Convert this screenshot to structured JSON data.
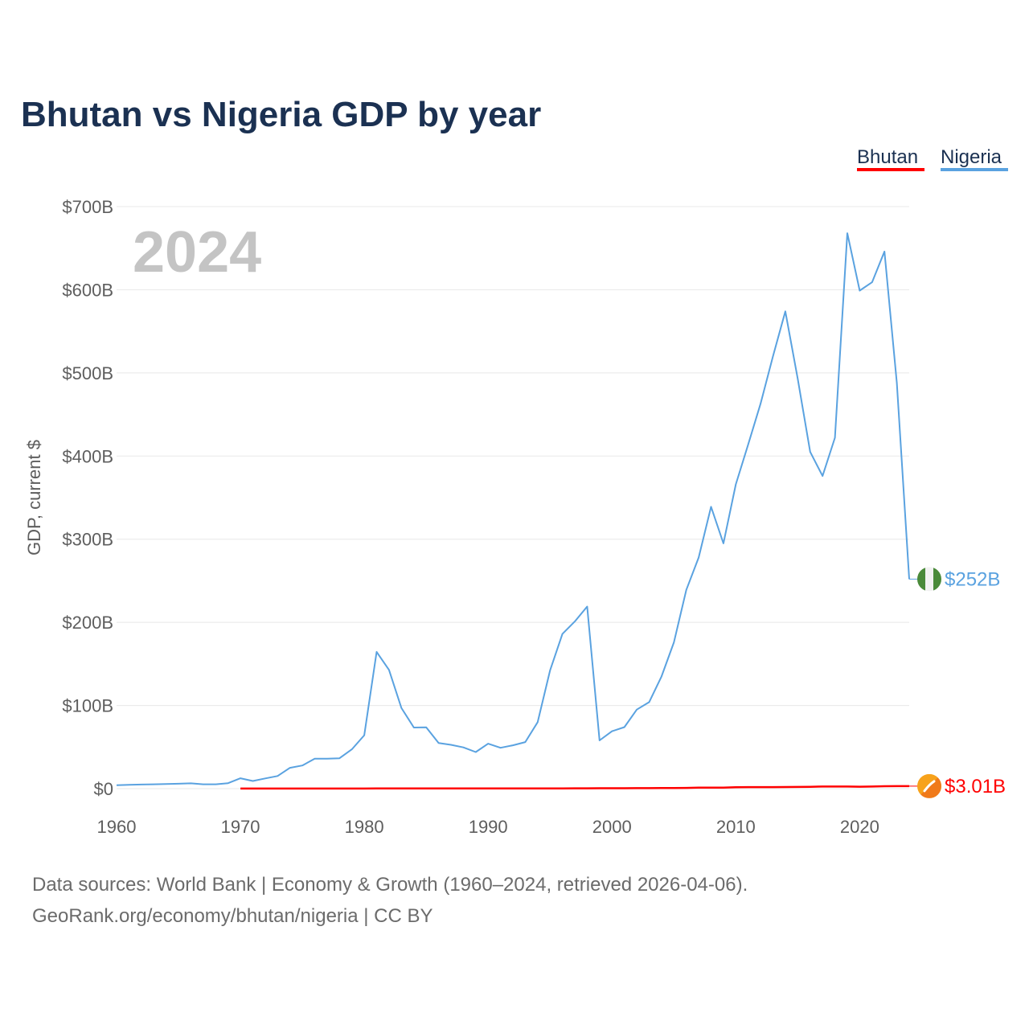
{
  "chart_data": {
    "type": "line",
    "title": "Bhutan vs Nigeria GDP by year",
    "ylabel": "GDP, current $",
    "xlabel": "",
    "xlim": [
      1960,
      2024
    ],
    "ylim": [
      0,
      700
    ],
    "x_ticks": [
      1960,
      1970,
      1980,
      1990,
      2000,
      2010,
      2020
    ],
    "x_tick_labels": [
      "1960",
      "1970",
      "1980",
      "1990",
      "2000",
      "2010",
      "2020"
    ],
    "y_ticks": [
      0,
      100,
      200,
      300,
      400,
      500,
      600,
      700
    ],
    "y_tick_labels": [
      "$0",
      "$100B",
      "$200B",
      "$300B",
      "$400B",
      "$500B",
      "$600B",
      "$700B"
    ],
    "current_year_label": "2024",
    "grid": true,
    "legend": "top-right",
    "series": [
      {
        "name": "Bhutan",
        "color": "#ff0000",
        "end_label": "$3.01B",
        "icon": "bhutan-flag-icon",
        "x": [
          1970,
          1971,
          1972,
          1973,
          1974,
          1975,
          1976,
          1977,
          1978,
          1979,
          1980,
          1981,
          1982,
          1983,
          1984,
          1985,
          1986,
          1987,
          1988,
          1989,
          1990,
          1991,
          1992,
          1993,
          1994,
          1995,
          1996,
          1997,
          1998,
          1999,
          2000,
          2001,
          2002,
          2003,
          2004,
          2005,
          2006,
          2007,
          2008,
          2009,
          2010,
          2011,
          2012,
          2013,
          2014,
          2015,
          2016,
          2017,
          2018,
          2019,
          2020,
          2021,
          2022,
          2023,
          2024
        ],
        "values": [
          0.05,
          0.05,
          0.05,
          0.05,
          0.06,
          0.07,
          0.08,
          0.09,
          0.1,
          0.12,
          0.14,
          0.16,
          0.17,
          0.18,
          0.18,
          0.2,
          0.22,
          0.26,
          0.3,
          0.29,
          0.29,
          0.25,
          0.25,
          0.23,
          0.25,
          0.29,
          0.32,
          0.37,
          0.4,
          0.44,
          0.45,
          0.49,
          0.54,
          0.62,
          0.7,
          0.8,
          0.9,
          1.2,
          1.3,
          1.3,
          1.6,
          1.8,
          1.8,
          1.8,
          1.9,
          2.0,
          2.2,
          2.5,
          2.5,
          2.5,
          2.3,
          2.5,
          2.9,
          3.0,
          3.01
        ]
      },
      {
        "name": "Nigeria",
        "color": "#5aa2e0",
        "end_label": "$252B",
        "icon": "nigeria-flag-icon",
        "x": [
          1960,
          1961,
          1962,
          1963,
          1964,
          1965,
          1966,
          1967,
          1968,
          1969,
          1970,
          1971,
          1972,
          1973,
          1974,
          1975,
          1976,
          1977,
          1978,
          1979,
          1980,
          1981,
          1982,
          1983,
          1984,
          1985,
          1986,
          1987,
          1988,
          1989,
          1990,
          1991,
          1992,
          1993,
          1994,
          1995,
          1996,
          1997,
          1998,
          1999,
          2000,
          2001,
          2002,
          2003,
          2004,
          2005,
          2006,
          2007,
          2008,
          2009,
          2010,
          2011,
          2012,
          2013,
          2014,
          2015,
          2016,
          2017,
          2018,
          2019,
          2020,
          2021,
          2022,
          2023,
          2024
        ],
        "values": [
          4.2,
          4.5,
          4.9,
          5.2,
          5.6,
          5.9,
          6.4,
          5.2,
          5.2,
          6.6,
          12.5,
          9.2,
          12.3,
          15.2,
          25.0,
          27.8,
          36.0,
          36.0,
          36.5,
          47.3,
          64.2,
          164.5,
          142.8,
          97.1,
          73.5,
          73.7,
          54.8,
          52.7,
          49.6,
          44.0,
          54.0,
          49.1,
          52.1,
          56.0,
          80.0,
          142.0,
          186.0,
          201.0,
          219.0,
          58.0,
          69.0,
          74.0,
          95.0,
          104.0,
          135.0,
          176.0,
          239.0,
          278.0,
          339.0,
          295.0,
          366.0,
          414.0,
          463.0,
          520.0,
          574.0,
          493.0,
          405.0,
          376.0,
          422.0,
          668.0,
          599.0,
          609.0,
          646.0,
          488.0,
          252.0
        ]
      }
    ]
  },
  "legend": {
    "items": [
      "Bhutan",
      "Nigeria"
    ]
  },
  "footer": {
    "source_line": "Data sources: World Bank | Economy & Growth (1960–2024, retrieved 2026-04-06).",
    "credit_line": "GeoRank.org/economy/bhutan/nigeria | CC BY"
  }
}
